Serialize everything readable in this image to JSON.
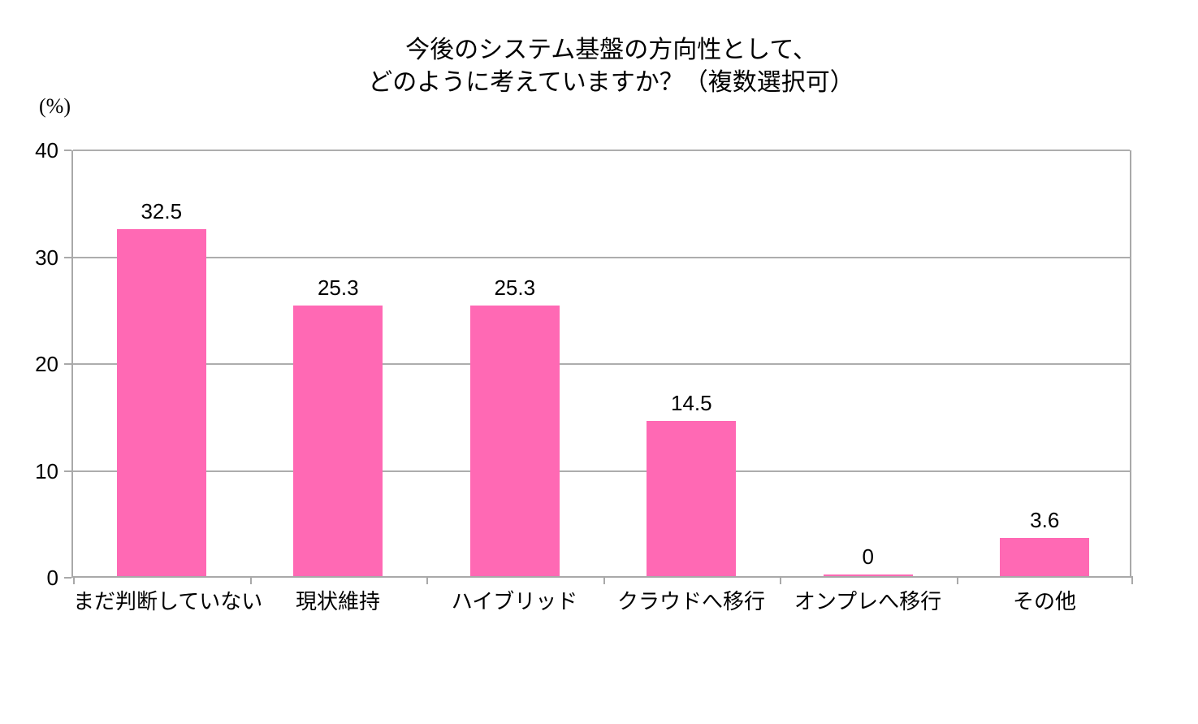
{
  "chart_data": {
    "type": "bar",
    "title": "今後のシステム基盤の方向性として、どのように考えていますか？（複数選択可）",
    "title_lines": [
      "今後のシステム基盤の方向性として、",
      "どのように考えていますか？（複数選択可）"
    ],
    "unit_label": "(%)",
    "categories": [
      "まだ判断していない",
      "現状維持",
      "ハイブリッド",
      "クラウドへ移行",
      "オンプレへ移行",
      "その他"
    ],
    "values": [
      32.5,
      25.3,
      25.3,
      14.5,
      0,
      3.6
    ],
    "value_labels": [
      "32.5",
      "25.3",
      "25.3",
      "14.5",
      "0",
      "3.6"
    ],
    "xlabel": "",
    "ylabel": "",
    "ylim": [
      0,
      40
    ],
    "yticks": [
      0,
      10,
      20,
      30,
      40
    ],
    "grid": true,
    "legend": "none",
    "colors": {
      "bar": "#FF69B4",
      "gridline": "#ADADAD",
      "axis": "#A9A9A9",
      "text": "#000000",
      "background": "#FFFFFF"
    }
  }
}
